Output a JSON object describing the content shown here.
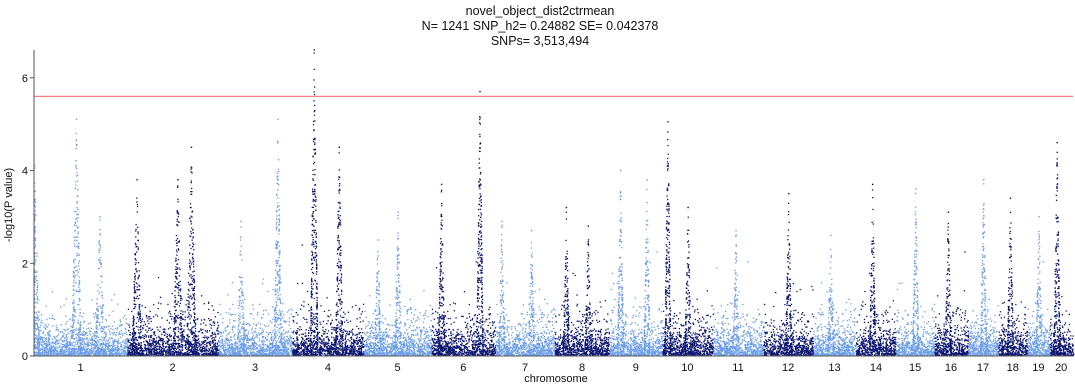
{
  "chart_data": {
    "type": "scatter",
    "title_lines": [
      "novel_object_dist2ctrmean",
      "N= 1241    SNP_h2= 0.24882 SE= 0.042378",
      "SNPs= 3,513,494"
    ],
    "xlabel": "chromosome",
    "ylabel": "-log10(P value)",
    "ylim": [
      0,
      6.6
    ],
    "y_ticks": [
      0,
      2,
      4,
      6
    ],
    "significance_line": 5.6,
    "colors": {
      "odd_chromosome": "#6b9de8",
      "even_chromosome": "#0a1470",
      "threshold": "#f08080",
      "axis": "#555555"
    },
    "chromosomes": [
      {
        "label": "1",
        "length": 249,
        "peaks": [
          [
            0.0,
            4.1
          ],
          [
            0.45,
            5.1
          ],
          [
            0.7,
            3.0
          ]
        ]
      },
      {
        "label": "2",
        "length": 243,
        "peaks": [
          [
            0.1,
            3.8
          ],
          [
            0.55,
            3.8
          ],
          [
            0.7,
            4.5
          ]
        ]
      },
      {
        "label": "3",
        "length": 198,
        "peaks": [
          [
            0.8,
            5.1
          ],
          [
            0.3,
            2.9
          ]
        ]
      },
      {
        "label": "4",
        "length": 191,
        "peaks": [
          [
            0.3,
            6.6
          ],
          [
            0.65,
            4.5
          ]
        ]
      },
      {
        "label": "5",
        "length": 181,
        "peaks": [
          [
            0.5,
            3.1
          ],
          [
            0.2,
            2.5
          ]
        ]
      },
      {
        "label": "6",
        "length": 171,
        "peaks": [
          [
            0.15,
            3.7
          ],
          [
            0.75,
            5.7
          ]
        ]
      },
      {
        "label": "7",
        "length": 159,
        "peaks": [
          [
            0.1,
            2.9
          ],
          [
            0.6,
            2.7
          ]
        ]
      },
      {
        "label": "8",
        "length": 146,
        "peaks": [
          [
            0.2,
            3.2
          ],
          [
            0.6,
            2.8
          ]
        ]
      },
      {
        "label": "9",
        "length": 141,
        "peaks": [
          [
            0.2,
            4.0
          ],
          [
            0.7,
            3.8
          ]
        ]
      },
      {
        "label": "10",
        "length": 135,
        "peaks": [
          [
            0.1,
            5.05
          ],
          [
            0.5,
            3.2
          ]
        ]
      },
      {
        "label": "11",
        "length": 135,
        "peaks": [
          [
            0.45,
            2.7
          ]
        ]
      },
      {
        "label": "12",
        "length": 133,
        "peaks": [
          [
            0.5,
            3.5
          ]
        ]
      },
      {
        "label": "13",
        "length": 115,
        "peaks": [
          [
            0.4,
            2.6
          ]
        ]
      },
      {
        "label": "14",
        "length": 107,
        "peaks": [
          [
            0.4,
            3.7
          ]
        ]
      },
      {
        "label": "15",
        "length": 102,
        "peaks": [
          [
            0.5,
            3.6
          ]
        ]
      },
      {
        "label": "16",
        "length": 90,
        "peaks": [
          [
            0.4,
            3.1
          ]
        ]
      },
      {
        "label": "17",
        "length": 81,
        "peaks": [
          [
            0.5,
            3.8
          ]
        ]
      },
      {
        "label": "18",
        "length": 78,
        "peaks": [
          [
            0.4,
            3.4
          ]
        ]
      },
      {
        "label": "19",
        "length": 59,
        "peaks": [
          [
            0.5,
            3.0
          ]
        ]
      },
      {
        "label": "20",
        "length": 63,
        "peaks": [
          [
            0.3,
            4.6
          ]
        ]
      }
    ]
  }
}
